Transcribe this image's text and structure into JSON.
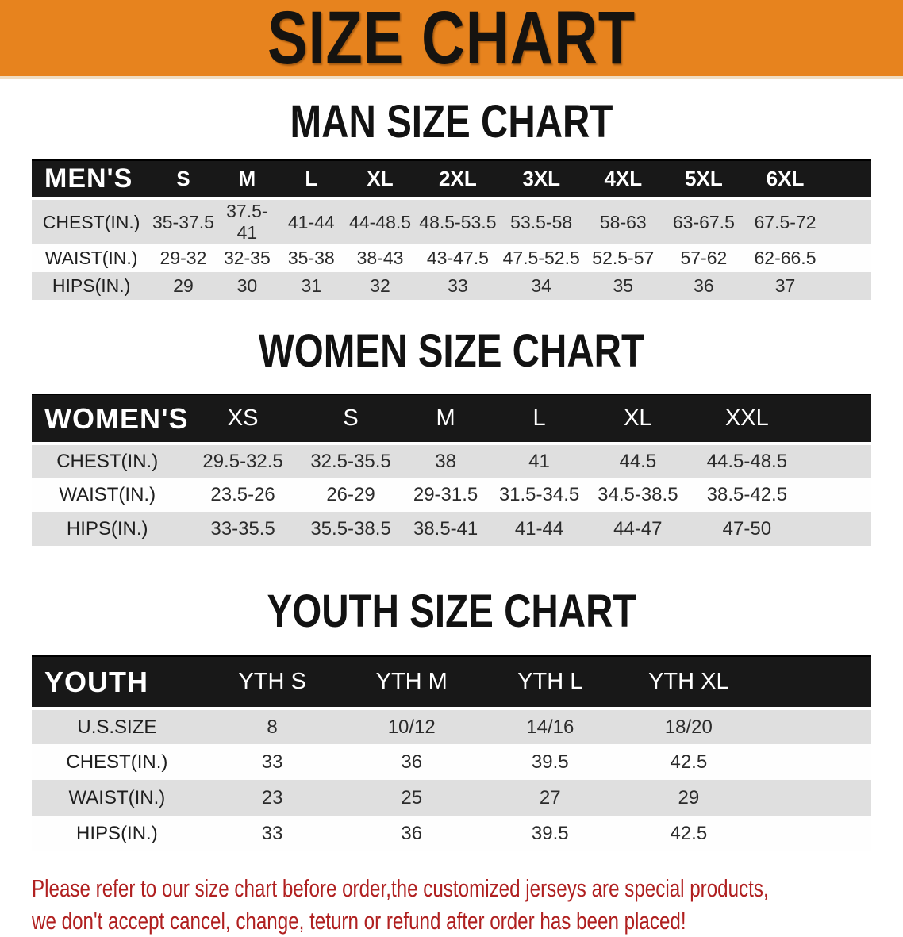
{
  "banner": {
    "title": "SIZE CHART"
  },
  "colors": {
    "banner_bg": "#e7831e",
    "header_bar": "#181818",
    "row_alt": "#dfdfdf",
    "footer_red": "#b02020"
  },
  "sections": [
    {
      "heading": "MAN SIZE CHART",
      "table": {
        "header": [
          "MEN'S",
          "S",
          "M",
          "L",
          "XL",
          "2XL",
          "3XL",
          "4XL",
          "5XL",
          "6XL"
        ],
        "rows": [
          {
            "label": "CHEST(IN.)",
            "values": [
              "35-37.5",
              "37.5-41",
              "41-44",
              "44-48.5",
              "48.5-53.5",
              "53.5-58",
              "58-63",
              "63-67.5",
              "67.5-72"
            ]
          },
          {
            "label": "WAIST(IN.)",
            "values": [
              "29-32",
              "32-35",
              "35-38",
              "38-43",
              "43-47.5",
              "47.5-52.5",
              "52.5-57",
              "57-62",
              "62-66.5"
            ]
          },
          {
            "label": "HIPS(IN.)",
            "values": [
              "29",
              "30",
              "31",
              "32",
              "33",
              "34",
              "35",
              "36",
              "37"
            ]
          }
        ]
      }
    },
    {
      "heading": "WOMEN SIZE CHART",
      "table": {
        "header": [
          "WOMEN'S",
          "XS",
          "S",
          "M",
          "L",
          "XL",
          "XXL"
        ],
        "rows": [
          {
            "label": "CHEST(IN.)",
            "values": [
              "29.5-32.5",
              "32.5-35.5",
              "38",
              "41",
              "44.5",
              "44.5-48.5"
            ]
          },
          {
            "label": "WAIST(IN.)",
            "values": [
              "23.5-26",
              "26-29",
              "29-31.5",
              "31.5-34.5",
              "34.5-38.5",
              "38.5-42.5"
            ]
          },
          {
            "label": "HIPS(IN.)",
            "values": [
              "33-35.5",
              "35.5-38.5",
              "38.5-41",
              "41-44",
              "44-47",
              "47-50"
            ]
          }
        ]
      }
    },
    {
      "heading": "YOUTH SIZE CHART",
      "table": {
        "header": [
          "YOUTH",
          "YTH S",
          "YTH M",
          "YTH L",
          "YTH XL"
        ],
        "rows": [
          {
            "label": "U.S.SIZE",
            "values": [
              "8",
              "10/12",
              "14/16",
              "18/20"
            ]
          },
          {
            "label": "CHEST(IN.)",
            "values": [
              "33",
              "36",
              "39.5",
              "42.5"
            ]
          },
          {
            "label": "WAIST(IN.)",
            "values": [
              "23",
              "25",
              "27",
              "29"
            ]
          },
          {
            "label": "HIPS(IN.)",
            "values": [
              "33",
              "36",
              "39.5",
              "42.5"
            ]
          }
        ]
      }
    }
  ],
  "footer": {
    "line1": "Please refer to our size chart before order,the customized jerseys are special products,",
    "line2": "we don't accept cancel, change, teturn or refund after order has been placed!"
  }
}
